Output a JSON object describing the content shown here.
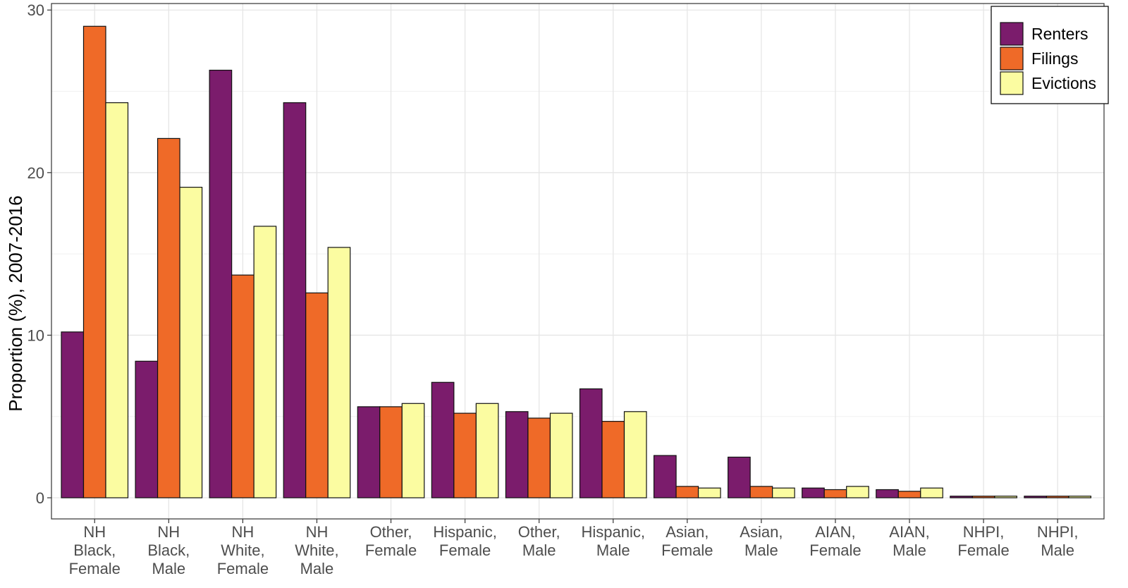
{
  "chart_data": {
    "type": "bar",
    "title": "",
    "xlabel": "",
    "ylabel": "Proportion (%), 2007-2016",
    "ylim": [
      -1.3,
      30.4
    ],
    "yticks": [
      0,
      10,
      20,
      30
    ],
    "grid": true,
    "legend_position": "top-right",
    "categories": [
      [
        "NH",
        "Black,",
        "Female"
      ],
      [
        "NH",
        "Black,",
        "Male"
      ],
      [
        "NH",
        "White,",
        "Female"
      ],
      [
        "NH",
        "White,",
        "Male"
      ],
      [
        "Other,",
        "Female"
      ],
      [
        "Hispanic,",
        "Female"
      ],
      [
        "Other,",
        "Male"
      ],
      [
        "Hispanic,",
        "Male"
      ],
      [
        "Asian,",
        "Female"
      ],
      [
        "Asian,",
        "Male"
      ],
      [
        "AIAN,",
        "Female"
      ],
      [
        "AIAN,",
        "Male"
      ],
      [
        "NHPI,",
        "Female"
      ],
      [
        "NHPI,",
        "Male"
      ]
    ],
    "series": [
      {
        "name": "Renters",
        "color": "#7b1c6c",
        "values": [
          10.2,
          8.4,
          26.3,
          24.3,
          5.6,
          7.1,
          5.3,
          6.7,
          2.6,
          2.5,
          0.6,
          0.5,
          0.1,
          0.1
        ]
      },
      {
        "name": "Filings",
        "color": "#ef6a28",
        "values": [
          29.0,
          22.1,
          13.7,
          12.6,
          5.6,
          5.2,
          4.9,
          4.7,
          0.7,
          0.7,
          0.5,
          0.4,
          0.1,
          0.1
        ]
      },
      {
        "name": "Evictions",
        "color": "#fbfca1",
        "values": [
          24.3,
          19.1,
          16.7,
          15.4,
          5.8,
          5.8,
          5.2,
          5.3,
          0.6,
          0.6,
          0.7,
          0.6,
          0.1,
          0.1
        ]
      }
    ]
  }
}
